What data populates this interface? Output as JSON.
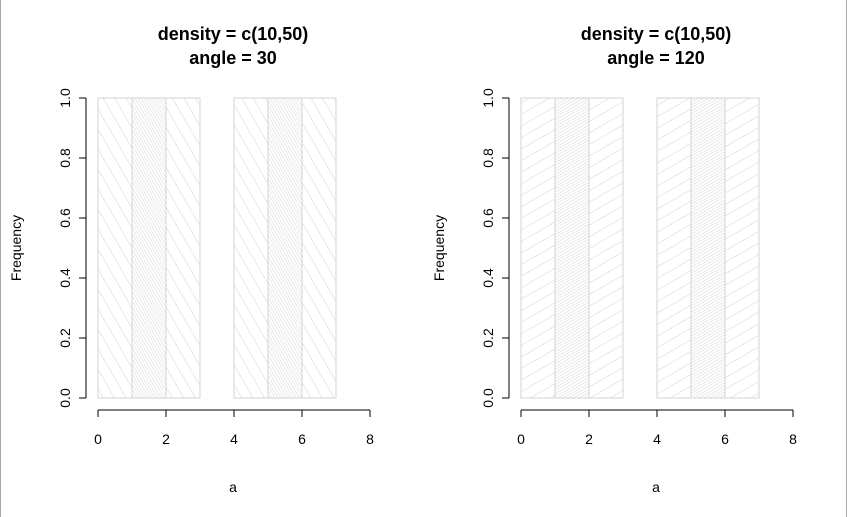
{
  "chart_data": [
    {
      "type": "bar",
      "title": "density = c(10,50)",
      "subtitle": "angle = 30",
      "xlabel": "a",
      "ylabel": "Frequency",
      "xlim": [
        0,
        8
      ],
      "ylim": [
        0,
        1.0
      ],
      "xticks": [
        "0",
        "2",
        "4",
        "6",
        "8"
      ],
      "yticks": [
        "0.0",
        "0.2",
        "0.4",
        "0.6",
        "0.8",
        "1.0"
      ],
      "bins": [
        {
          "x0": 0,
          "x1": 1,
          "value": 1,
          "density": 10
        },
        {
          "x0": 1,
          "x1": 2,
          "value": 1,
          "density": 50
        },
        {
          "x0": 2,
          "x1": 3,
          "value": 1,
          "density": 10
        },
        {
          "x0": 3,
          "x1": 4,
          "value": 0,
          "density": 50
        },
        {
          "x0": 4,
          "x1": 5,
          "value": 1,
          "density": 10
        },
        {
          "x0": 5,
          "x1": 6,
          "value": 1,
          "density": 50
        },
        {
          "x0": 6,
          "x1": 7,
          "value": 1,
          "density": 10
        }
      ],
      "angle": 30,
      "grid": false,
      "colors": {
        "bar_border": "#d3d3d3",
        "shading": "#d3d3d3",
        "axis": "#000000"
      }
    },
    {
      "type": "bar",
      "title": "density = c(10,50)",
      "subtitle": "angle = 120",
      "xlabel": "a",
      "ylabel": "Frequency",
      "xlim": [
        0,
        8
      ],
      "ylim": [
        0,
        1.0
      ],
      "xticks": [
        "0",
        "2",
        "4",
        "6",
        "8"
      ],
      "yticks": [
        "0.0",
        "0.2",
        "0.4",
        "0.6",
        "0.8",
        "1.0"
      ],
      "bins": [
        {
          "x0": 0,
          "x1": 1,
          "value": 1,
          "density": 10
        },
        {
          "x0": 1,
          "x1": 2,
          "value": 1,
          "density": 50
        },
        {
          "x0": 2,
          "x1": 3,
          "value": 1,
          "density": 10
        },
        {
          "x0": 3,
          "x1": 4,
          "value": 0,
          "density": 50
        },
        {
          "x0": 4,
          "x1": 5,
          "value": 1,
          "density": 10
        },
        {
          "x0": 5,
          "x1": 6,
          "value": 1,
          "density": 50
        },
        {
          "x0": 6,
          "x1": 7,
          "value": 1,
          "density": 10
        }
      ],
      "angle": 120,
      "grid": false,
      "colors": {
        "bar_border": "#d3d3d3",
        "shading": "#d3d3d3",
        "axis": "#000000"
      }
    }
  ]
}
